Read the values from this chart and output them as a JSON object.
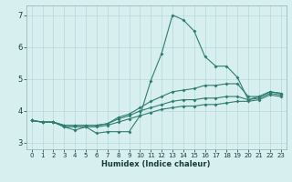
{
  "xlabel": "Humidex (Indice chaleur)",
  "ylabel": "",
  "background_color": "#d8eff0",
  "grid_color": "#b8d8dc",
  "line_color": "#2e7d6e",
  "xlim": [
    -0.5,
    23.5
  ],
  "ylim": [
    2.8,
    7.3
  ],
  "yticks": [
    3,
    4,
    5,
    6,
    7
  ],
  "xticks": [
    0,
    1,
    2,
    3,
    4,
    5,
    6,
    7,
    8,
    9,
    10,
    11,
    12,
    13,
    14,
    15,
    16,
    17,
    18,
    19,
    20,
    21,
    22,
    23
  ],
  "line1_x": [
    0,
    1,
    2,
    3,
    4,
    5,
    6,
    7,
    8,
    9,
    10,
    11,
    12,
    13,
    14,
    15,
    16,
    17,
    18,
    19,
    20,
    21,
    22,
    23
  ],
  "line1_y": [
    3.7,
    3.65,
    3.65,
    3.5,
    3.4,
    3.5,
    3.3,
    3.35,
    3.35,
    3.35,
    3.85,
    4.95,
    5.8,
    7.0,
    6.85,
    6.5,
    5.7,
    5.4,
    5.4,
    5.05,
    4.35,
    4.45,
    4.6,
    4.55
  ],
  "line2_x": [
    0,
    1,
    2,
    3,
    4,
    5,
    6,
    7,
    8,
    9,
    10,
    11,
    12,
    13,
    14,
    15,
    16,
    17,
    18,
    19,
    20,
    21,
    22,
    23
  ],
  "line2_y": [
    3.7,
    3.65,
    3.65,
    3.55,
    3.55,
    3.55,
    3.55,
    3.6,
    3.8,
    3.9,
    4.1,
    4.3,
    4.45,
    4.6,
    4.65,
    4.7,
    4.8,
    4.8,
    4.85,
    4.85,
    4.45,
    4.45,
    4.6,
    4.55
  ],
  "line3_x": [
    0,
    1,
    2,
    3,
    4,
    5,
    6,
    7,
    8,
    9,
    10,
    11,
    12,
    13,
    14,
    15,
    16,
    17,
    18,
    19,
    20,
    21,
    22,
    23
  ],
  "line3_y": [
    3.7,
    3.65,
    3.65,
    3.55,
    3.55,
    3.55,
    3.55,
    3.6,
    3.75,
    3.85,
    4.0,
    4.1,
    4.2,
    4.3,
    4.35,
    4.35,
    4.4,
    4.4,
    4.45,
    4.45,
    4.35,
    4.4,
    4.55,
    4.5
  ],
  "line4_x": [
    0,
    1,
    2,
    3,
    4,
    5,
    6,
    7,
    8,
    9,
    10,
    11,
    12,
    13,
    14,
    15,
    16,
    17,
    18,
    19,
    20,
    21,
    22,
    23
  ],
  "line4_y": [
    3.7,
    3.65,
    3.65,
    3.5,
    3.5,
    3.5,
    3.5,
    3.55,
    3.65,
    3.75,
    3.85,
    3.95,
    4.05,
    4.1,
    4.15,
    4.15,
    4.2,
    4.2,
    4.25,
    4.3,
    4.3,
    4.35,
    4.5,
    4.45
  ]
}
